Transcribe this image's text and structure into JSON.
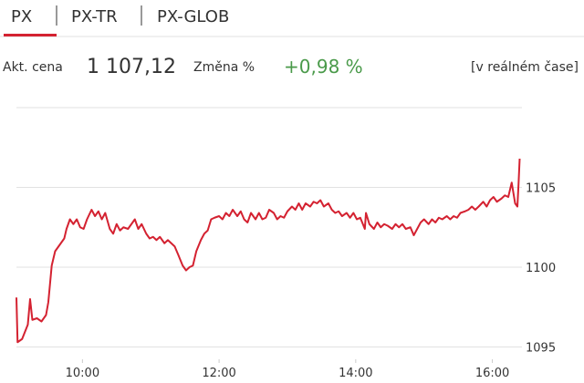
{
  "tabs": [
    "PX",
    "PX-TR",
    "PX-GLOB"
  ],
  "info": {
    "price_label": "Akt. cena",
    "price": "1 107,12",
    "change_label": "Změna %",
    "change": "+0,98 %",
    "realtime": "[v reálném čase]"
  },
  "chart_data": {
    "type": "line",
    "color": "#d42231",
    "x": [
      542,
      543,
      547,
      552,
      554,
      556,
      560,
      564,
      568,
      570,
      573,
      576,
      579,
      581,
      584,
      586,
      589,
      592,
      595,
      598,
      601,
      604,
      608,
      611,
      614,
      617,
      620,
      624,
      627,
      630,
      633,
      636,
      640,
      643,
      646,
      649,
      652,
      656,
      659,
      662,
      665,
      668,
      672,
      675,
      678,
      681,
      684,
      688,
      691,
      694,
      697,
      700,
      704,
      707,
      710,
      713,
      716,
      720,
      723,
      726,
      729,
      732,
      736,
      739,
      742,
      745,
      748,
      752,
      755,
      758,
      761,
      764,
      768,
      771,
      774,
      777,
      780,
      784,
      787,
      790,
      793,
      796,
      800,
      803,
      806,
      809,
      812,
      816,
      819,
      822,
      825,
      828,
      832,
      835,
      838,
      841,
      844,
      848,
      849,
      852,
      856,
      859,
      862,
      865,
      868,
      872,
      875,
      878,
      881,
      884,
      888,
      891,
      894,
      897,
      900,
      904,
      907,
      910,
      913,
      916,
      920,
      923,
      926,
      929,
      932,
      936,
      939,
      942,
      945,
      948,
      952,
      955,
      958,
      961,
      964,
      968,
      971,
      974,
      977,
      980,
      982,
      983,
      984
    ],
    "values": [
      1098.1,
      1095.3,
      1095.5,
      1096.4,
      1098.0,
      1096.7,
      1096.8,
      1096.6,
      1097.0,
      1097.8,
      1100.1,
      1101.0,
      1101.3,
      1101.5,
      1101.8,
      1102.4,
      1103.0,
      1102.7,
      1103.0,
      1102.5,
      1102.4,
      1103.0,
      1103.6,
      1103.2,
      1103.5,
      1103.0,
      1103.4,
      1102.4,
      1102.1,
      1102.7,
      1102.3,
      1102.5,
      1102.4,
      1102.7,
      1103.0,
      1102.4,
      1102.7,
      1102.1,
      1101.8,
      1101.9,
      1101.7,
      1101.9,
      1101.5,
      1101.7,
      1101.5,
      1101.3,
      1100.8,
      1100.1,
      1099.8,
      1100.0,
      1100.1,
      1101.0,
      1101.7,
      1102.1,
      1102.3,
      1103.0,
      1103.1,
      1103.2,
      1103.0,
      1103.4,
      1103.2,
      1103.6,
      1103.2,
      1103.5,
      1103.0,
      1102.8,
      1103.4,
      1103.0,
      1103.4,
      1103.0,
      1103.1,
      1103.6,
      1103.4,
      1103.0,
      1103.2,
      1103.1,
      1103.5,
      1103.8,
      1103.6,
      1104.0,
      1103.6,
      1104.0,
      1103.8,
      1104.1,
      1104.0,
      1104.2,
      1103.8,
      1104.0,
      1103.6,
      1103.4,
      1103.5,
      1103.2,
      1103.4,
      1103.1,
      1103.4,
      1103.0,
      1103.1,
      1102.4,
      1103.4,
      1102.7,
      1102.4,
      1102.8,
      1102.5,
      1102.7,
      1102.6,
      1102.4,
      1102.7,
      1102.5,
      1102.7,
      1102.4,
      1102.5,
      1102.0,
      1102.4,
      1102.8,
      1103.0,
      1102.7,
      1103.0,
      1102.8,
      1103.1,
      1103.0,
      1103.2,
      1103.0,
      1103.2,
      1103.1,
      1103.4,
      1103.5,
      1103.6,
      1103.8,
      1103.6,
      1103.8,
      1104.1,
      1103.8,
      1104.2,
      1104.4,
      1104.1,
      1104.3,
      1104.5,
      1104.4,
      1105.3,
      1104.0,
      1103.8,
      1105.2,
      1106.8
    ],
    "xlim": [
      542,
      986
    ],
    "xticks": [
      {
        "value": 600,
        "label": "10:00"
      },
      {
        "value": 720,
        "label": "12:00"
      },
      {
        "value": 840,
        "label": "14:00"
      },
      {
        "value": 960,
        "label": "16:00"
      }
    ],
    "ylim": [
      1094,
      1110
    ],
    "yticks": [
      1095,
      1100,
      1105
    ],
    "grid": true
  }
}
